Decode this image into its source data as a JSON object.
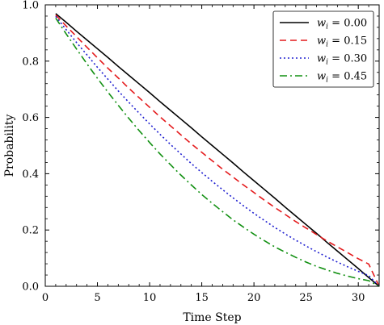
{
  "chart_data": {
    "type": "line",
    "title": "",
    "xlabel": "Time Step",
    "ylabel": "Probability",
    "xlim": [
      0,
      32
    ],
    "ylim": [
      0,
      1.0
    ],
    "xticks": [
      0,
      5,
      10,
      15,
      20,
      25,
      30
    ],
    "yticks": [
      0.0,
      0.2,
      0.4,
      0.6,
      0.8,
      1.0
    ],
    "xtick_labels": [
      "0",
      "5",
      "10",
      "15",
      "20",
      "25",
      "30"
    ],
    "ytick_labels": [
      "0.0",
      "0.2",
      "0.4",
      "0.6",
      "0.8",
      "1.0"
    ],
    "legend_position": "top-right",
    "grid": false,
    "x": [
      1,
      2,
      3,
      4,
      5,
      6,
      7,
      8,
      9,
      10,
      11,
      12,
      13,
      14,
      15,
      16,
      17,
      18,
      19,
      20,
      21,
      22,
      23,
      24,
      25,
      26,
      27,
      28,
      29,
      30,
      31,
      32
    ],
    "series": [
      {
        "name_var": "w",
        "name_sub": "i",
        "name_value": " = 0.00",
        "color": "#000000",
        "dash": "",
        "values": [
          0.969,
          0.938,
          0.906,
          0.875,
          0.844,
          0.813,
          0.781,
          0.75,
          0.719,
          0.688,
          0.656,
          0.625,
          0.594,
          0.563,
          0.531,
          0.5,
          0.469,
          0.438,
          0.406,
          0.375,
          0.344,
          0.313,
          0.281,
          0.25,
          0.219,
          0.188,
          0.156,
          0.125,
          0.094,
          0.063,
          0.031,
          0.0
        ]
      },
      {
        "name_var": "w",
        "name_sub": "i",
        "name_value": " = 0.15",
        "color": "#e41a1c",
        "dash": "8,5",
        "values": [
          0.964,
          0.925,
          0.887,
          0.849,
          0.812,
          0.775,
          0.74,
          0.704,
          0.67,
          0.636,
          0.602,
          0.57,
          0.538,
          0.506,
          0.476,
          0.446,
          0.416,
          0.388,
          0.36,
          0.333,
          0.306,
          0.28,
          0.255,
          0.23,
          0.207,
          0.184,
          0.161,
          0.14,
          0.119,
          0.098,
          0.079,
          0.0
        ]
      },
      {
        "name_var": "w",
        "name_sub": "i",
        "name_value": " = 0.30",
        "color": "#1f1fd0",
        "dash": "2,3",
        "values": [
          0.959,
          0.912,
          0.866,
          0.822,
          0.778,
          0.736,
          0.694,
          0.654,
          0.615,
          0.577,
          0.54,
          0.504,
          0.47,
          0.436,
          0.404,
          0.373,
          0.343,
          0.314,
          0.286,
          0.259,
          0.234,
          0.209,
          0.186,
          0.164,
          0.143,
          0.123,
          0.104,
          0.086,
          0.069,
          0.053,
          0.038,
          0.0
        ]
      },
      {
        "name_var": "w",
        "name_sub": "i",
        "name_value": " = 0.45",
        "color": "#129012",
        "dash": "9,4,2,4",
        "values": [
          0.953,
          0.897,
          0.843,
          0.79,
          0.739,
          0.69,
          0.643,
          0.597,
          0.553,
          0.511,
          0.47,
          0.432,
          0.395,
          0.36,
          0.326,
          0.295,
          0.265,
          0.236,
          0.21,
          0.185,
          0.162,
          0.14,
          0.121,
          0.103,
          0.086,
          0.071,
          0.058,
          0.046,
          0.036,
          0.027,
          0.02,
          0.0
        ]
      }
    ]
  }
}
